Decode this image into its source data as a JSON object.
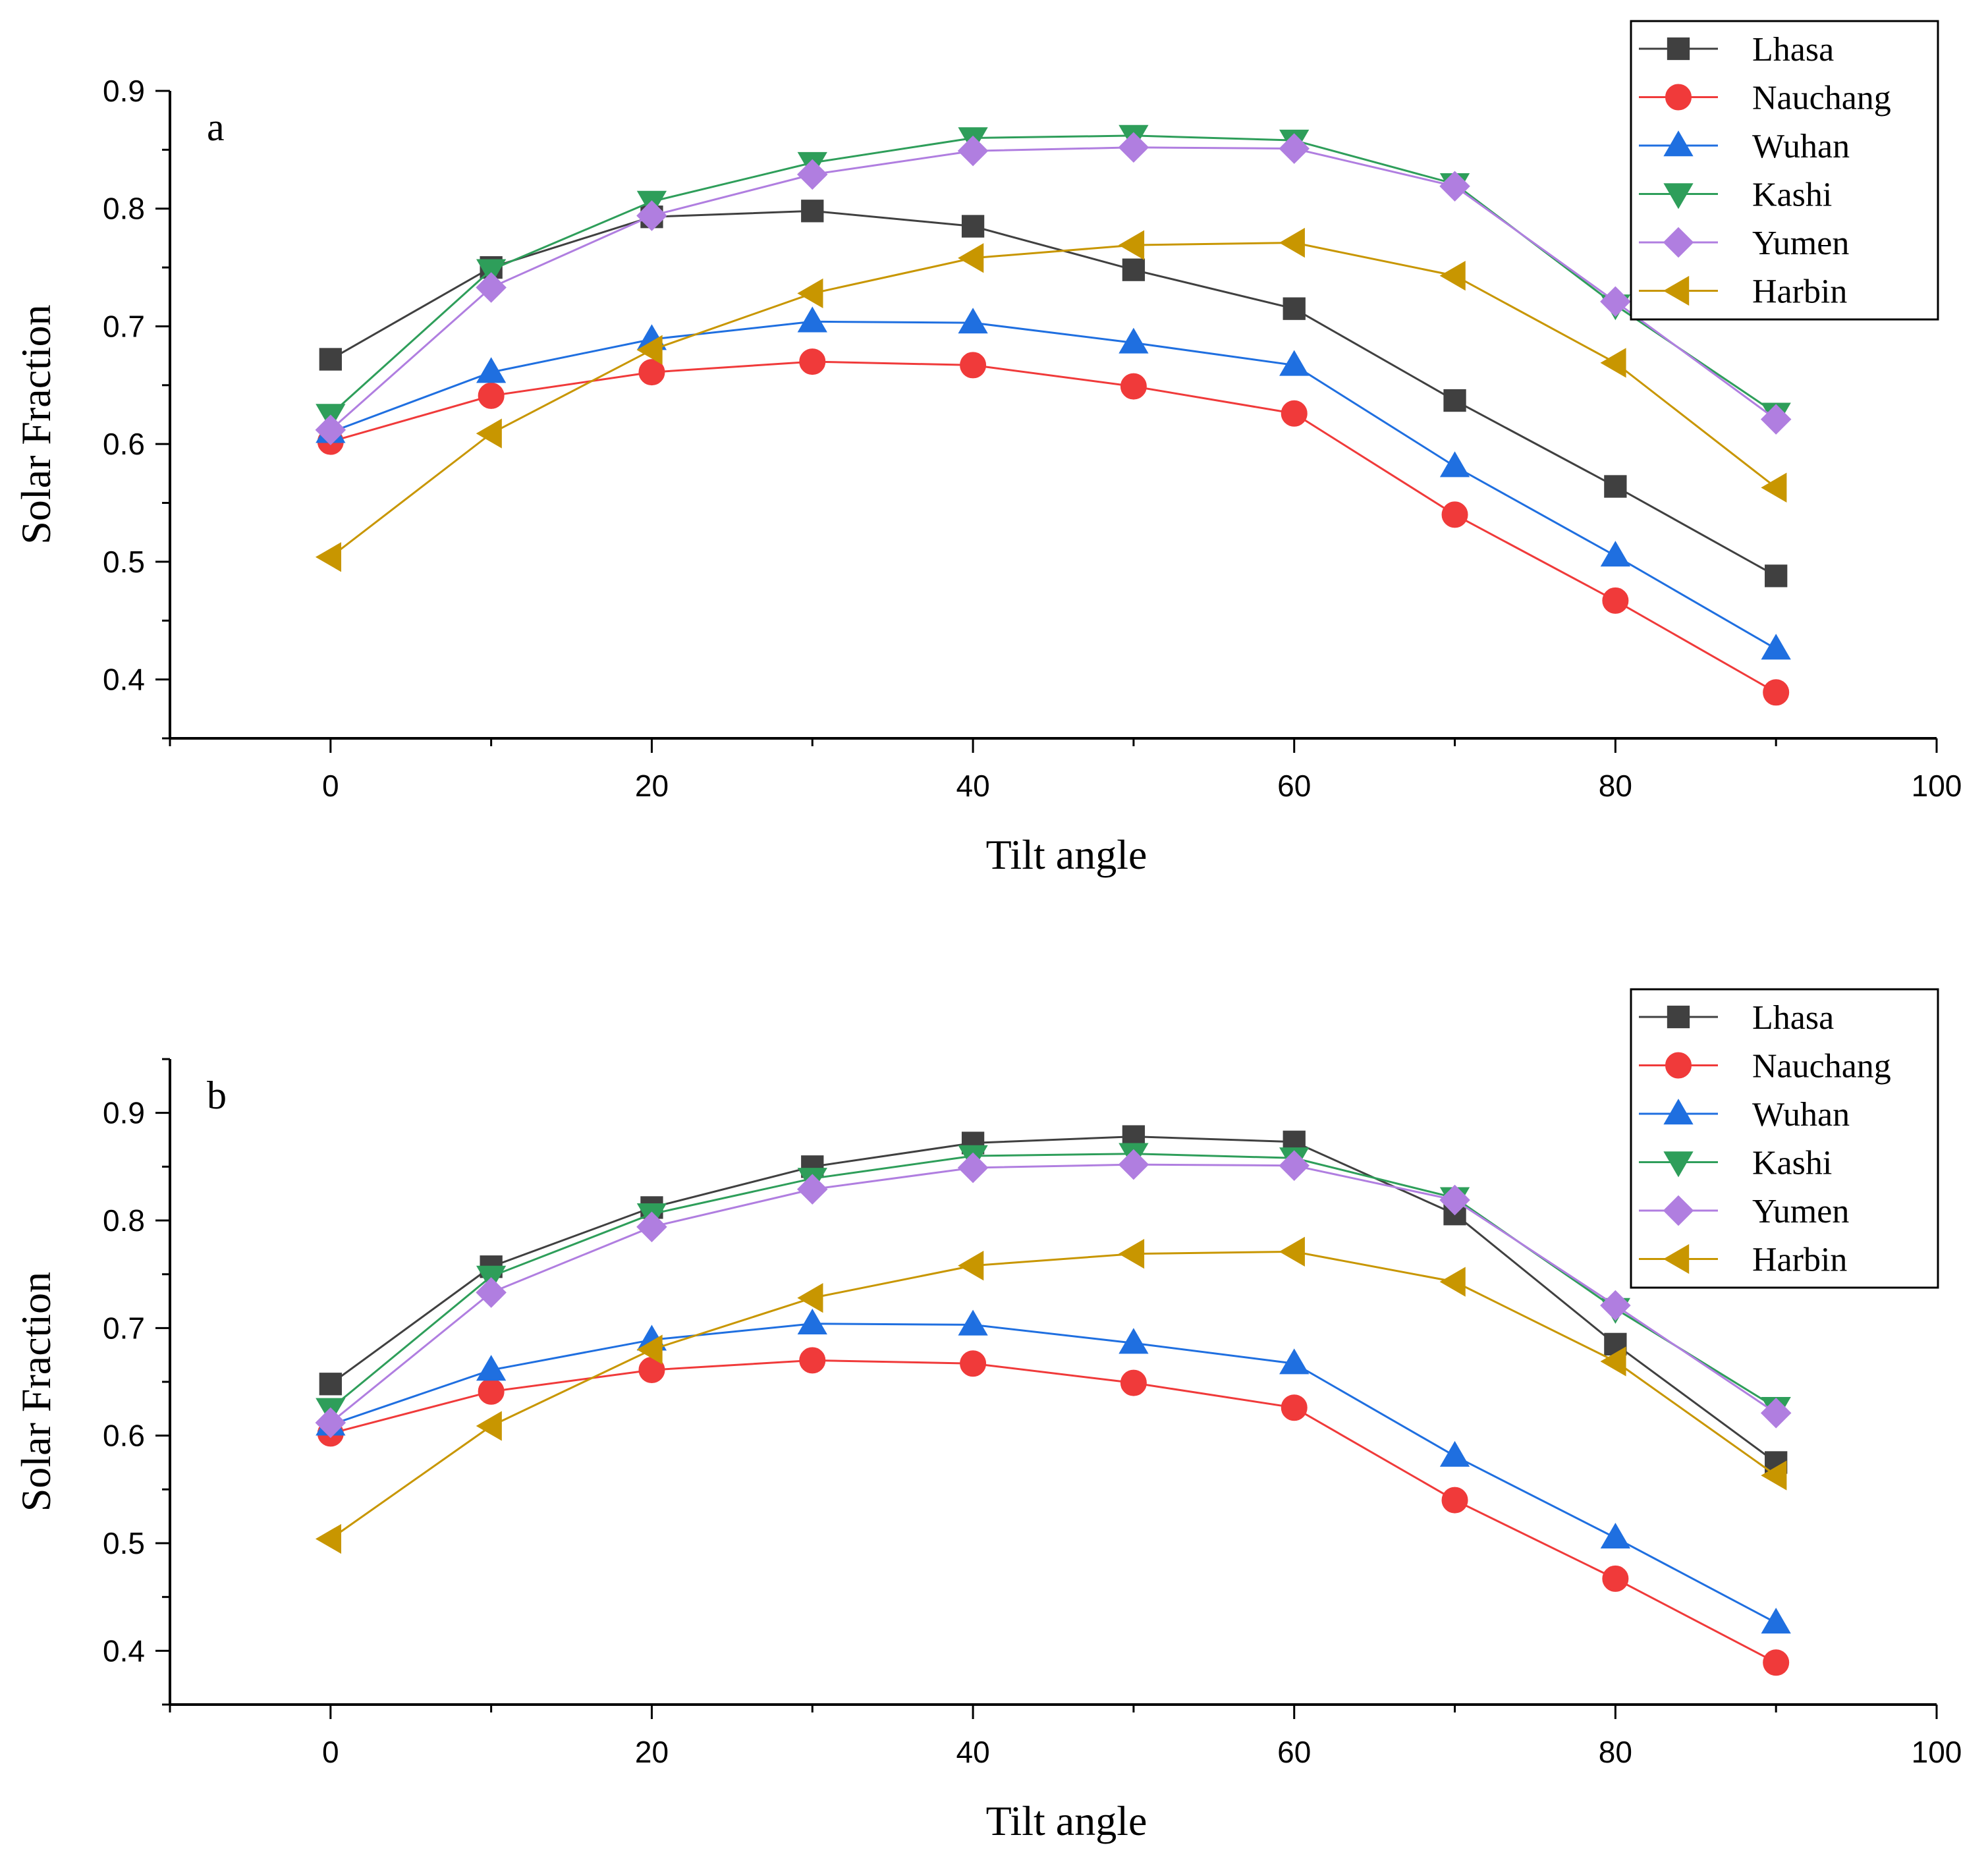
{
  "chart_data": [
    {
      "type": "line",
      "panel_label": "a",
      "xlabel": "Tilt angle",
      "ylabel": "Solar Fraction",
      "xlim": [
        -10,
        100
      ],
      "ylim": [
        0.35,
        0.9
      ],
      "xticks": [
        0,
        20,
        40,
        60,
        80,
        100
      ],
      "yticks": [
        0.4,
        0.5,
        0.6,
        0.7,
        0.8,
        0.9
      ],
      "grid": false,
      "legend_position": "top-right",
      "x": [
        0,
        10,
        20,
        30,
        40,
        50,
        60,
        70,
        80,
        90
      ],
      "series": [
        {
          "name": "Lhasa",
          "color": "#404040",
          "marker": "square",
          "values": [
            0.672,
            0.75,
            0.793,
            0.798,
            0.785,
            0.748,
            0.715,
            0.637,
            0.564,
            0.488
          ]
        },
        {
          "name": "Nauchang",
          "color": "#f03a3a",
          "marker": "circle",
          "values": [
            0.602,
            0.641,
            0.661,
            0.67,
            0.667,
            0.649,
            0.626,
            0.54,
            0.467,
            0.389
          ]
        },
        {
          "name": "Wuhan",
          "color": "#1f6fe0",
          "marker": "triangle-up",
          "values": [
            0.61,
            0.661,
            0.689,
            0.704,
            0.703,
            0.686,
            0.667,
            0.581,
            0.505,
            0.426
          ]
        },
        {
          "name": "Kashi",
          "color": "#2e9e5a",
          "marker": "triangle-down",
          "values": [
            0.625,
            0.748,
            0.806,
            0.839,
            0.86,
            0.862,
            0.858,
            0.821,
            0.718,
            0.626
          ]
        },
        {
          "name": "Yumen",
          "color": "#b07ee0",
          "marker": "diamond",
          "values": [
            0.612,
            0.733,
            0.794,
            0.829,
            0.849,
            0.852,
            0.851,
            0.819,
            0.721,
            0.621
          ]
        },
        {
          "name": "Harbin",
          "color": "#c89600",
          "marker": "triangle-left",
          "values": [
            0.504,
            0.609,
            0.68,
            0.728,
            0.758,
            0.769,
            0.771,
            0.743,
            0.669,
            0.563
          ]
        }
      ]
    },
    {
      "type": "line",
      "panel_label": "b",
      "xlabel": "Tilt angle",
      "ylabel": "Solar Fraction",
      "xlim": [
        -10,
        100
      ],
      "ylim": [
        0.35,
        0.95
      ],
      "xticks": [
        0,
        20,
        40,
        60,
        80,
        100
      ],
      "yticks": [
        0.4,
        0.5,
        0.6,
        0.7,
        0.8,
        0.9
      ],
      "grid": false,
      "legend_position": "top-right",
      "x": [
        0,
        10,
        20,
        30,
        40,
        50,
        60,
        70,
        80,
        90
      ],
      "series": [
        {
          "name": "Lhasa",
          "color": "#404040",
          "marker": "square",
          "values": [
            0.648,
            0.757,
            0.812,
            0.85,
            0.872,
            0.878,
            0.873,
            0.806,
            0.685,
            0.575
          ]
        },
        {
          "name": "Nauchang",
          "color": "#f03a3a",
          "marker": "circle",
          "values": [
            0.602,
            0.641,
            0.661,
            0.67,
            0.667,
            0.649,
            0.626,
            0.54,
            0.467,
            0.389
          ]
        },
        {
          "name": "Wuhan",
          "color": "#1f6fe0",
          "marker": "triangle-up",
          "values": [
            0.61,
            0.661,
            0.689,
            0.704,
            0.703,
            0.686,
            0.667,
            0.581,
            0.505,
            0.426
          ]
        },
        {
          "name": "Kashi",
          "color": "#2e9e5a",
          "marker": "triangle-down",
          "values": [
            0.625,
            0.748,
            0.806,
            0.839,
            0.86,
            0.862,
            0.858,
            0.821,
            0.718,
            0.626
          ]
        },
        {
          "name": "Yumen",
          "color": "#b07ee0",
          "marker": "diamond",
          "values": [
            0.612,
            0.733,
            0.794,
            0.829,
            0.849,
            0.852,
            0.851,
            0.819,
            0.721,
            0.621
          ]
        },
        {
          "name": "Harbin",
          "color": "#c89600",
          "marker": "triangle-left",
          "values": [
            0.504,
            0.609,
            0.68,
            0.728,
            0.758,
            0.769,
            0.771,
            0.743,
            0.669,
            0.563
          ]
        }
      ]
    }
  ]
}
